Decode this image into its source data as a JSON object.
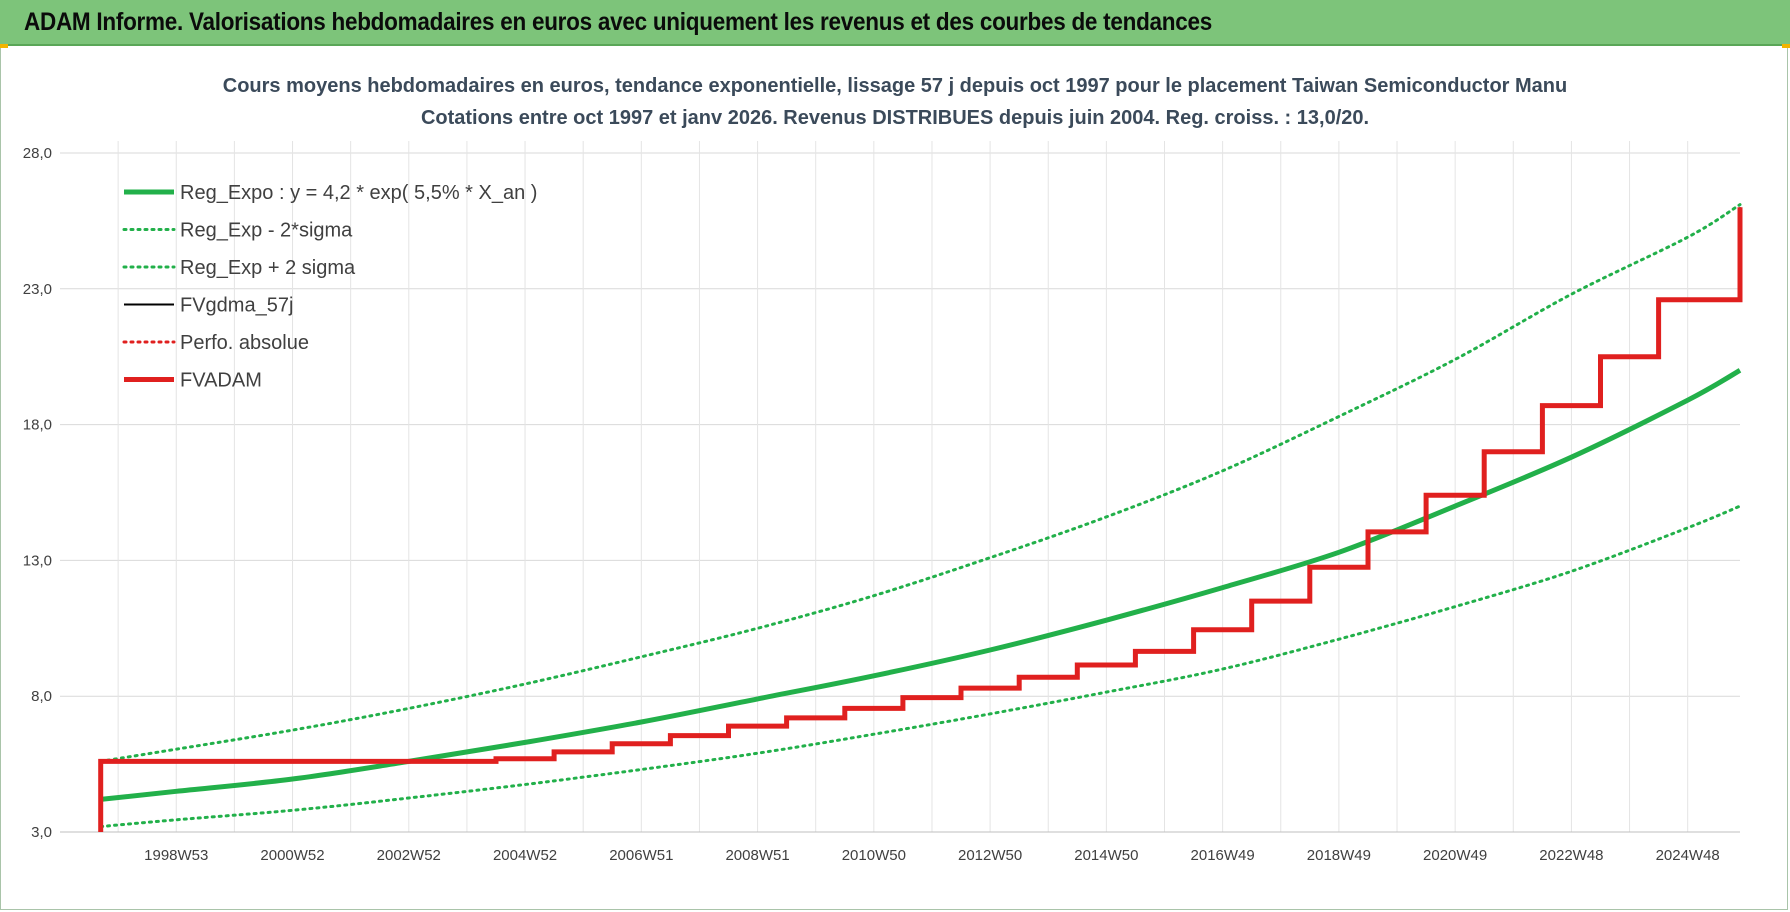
{
  "header": {
    "title": "ADAM Informe. Valorisations hebdomadaires en euros avec uniquement les revenus et des courbes de tendances",
    "background_color": "#7dc47a"
  },
  "chart_data": {
    "type": "line",
    "title": "Cours moyens hebdomadaires en euros, tendance exponentielle, lissage 57 j depuis oct 1997 pour le placement Taiwan Semiconductor Manu",
    "subtitle": "Cotations entre oct 1997 et janv 2026. Revenus DISTRIBUES depuis juin 2004. Reg. croiss. : 13,0/20.",
    "xlabel": "",
    "ylabel": "",
    "ylim": [
      3.0,
      28.0
    ],
    "xlim": [
      1997.0,
      2025.9
    ],
    "x_ticks": [
      {
        "label": "1998W53",
        "x": 1999.0
      },
      {
        "label": "2000W52",
        "x": 2001.0
      },
      {
        "label": "2002W52",
        "x": 2003.0
      },
      {
        "label": "2004W52",
        "x": 2005.0
      },
      {
        "label": "2006W51",
        "x": 2007.0
      },
      {
        "label": "2008W51",
        "x": 2009.0
      },
      {
        "label": "2010W50",
        "x": 2011.0
      },
      {
        "label": "2012W50",
        "x": 2013.0
      },
      {
        "label": "2014W50",
        "x": 2015.0
      },
      {
        "label": "2016W49",
        "x": 2017.0
      },
      {
        "label": "2018W49",
        "x": 2019.0
      },
      {
        "label": "2020W49",
        "x": 2021.0
      },
      {
        "label": "2022W48",
        "x": 2023.0
      },
      {
        "label": "2024W48",
        "x": 2025.0
      }
    ],
    "y_ticks": [
      "3,0",
      "8,0",
      "13,0",
      "18,0",
      "23,0",
      "28,0"
    ],
    "y_tick_values": [
      3,
      8,
      13,
      18,
      23,
      28
    ],
    "grid": true,
    "legend_position": "top-left",
    "series": [
      {
        "name": "Reg_Expo : y = 4,2 * exp( 5,5% *  X_an )",
        "color": "#22b04a",
        "style": "solid-thick",
        "x": [
          1997.7,
          1999,
          2001,
          2003,
          2005,
          2007,
          2009,
          2011,
          2013,
          2015,
          2017,
          2019,
          2021,
          2023,
          2025,
          2025.9
        ],
        "values": [
          4.2,
          4.5,
          4.95,
          5.6,
          6.3,
          7.05,
          7.9,
          8.75,
          9.7,
          10.8,
          12.0,
          13.3,
          15.0,
          16.8,
          18.9,
          20.0
        ]
      },
      {
        "name": "Reg_Exp - 2*sigma",
        "color": "#22b04a",
        "style": "dotted",
        "x": [
          1997.7,
          1999,
          2001,
          2003,
          2005,
          2007,
          2009,
          2011,
          2013,
          2015,
          2017,
          2019,
          2021,
          2023,
          2025,
          2025.9
        ],
        "values": [
          3.2,
          3.45,
          3.8,
          4.25,
          4.75,
          5.3,
          5.9,
          6.6,
          7.35,
          8.15,
          9.0,
          10.1,
          11.3,
          12.6,
          14.2,
          15.0
        ]
      },
      {
        "name": "Reg_Exp + 2 sigma",
        "color": "#22b04a",
        "style": "dotted",
        "x": [
          1997.7,
          1999,
          2001,
          2003,
          2005,
          2007,
          2009,
          2011,
          2013,
          2015,
          2017,
          2019,
          2021,
          2023,
          2025,
          2025.9
        ],
        "values": [
          5.6,
          6.05,
          6.75,
          7.55,
          8.45,
          9.45,
          10.5,
          11.7,
          13.1,
          14.6,
          16.3,
          18.3,
          20.4,
          22.8,
          24.9,
          26.1
        ]
      },
      {
        "name": "FVgdma_57j",
        "color": "#000000",
        "style": "solid",
        "x": [
          1997.7,
          2004.5,
          2005.5,
          2006.5,
          2007.5,
          2008.5,
          2009.5,
          2010.5,
          2011.5,
          2012.5,
          2013.5,
          2014.5,
          2015.5,
          2016.5,
          2017.5,
          2018.5,
          2019.5,
          2020.5,
          2021.5,
          2022.5,
          2023.5,
          2024.5,
          2025.9
        ],
        "values": [
          5.6,
          5.7,
          5.95,
          6.25,
          6.55,
          6.9,
          7.2,
          7.55,
          7.95,
          8.3,
          8.7,
          9.15,
          9.65,
          10.45,
          11.5,
          12.75,
          14.05,
          15.4,
          17.0,
          18.7,
          20.5,
          22.6,
          26.0
        ]
      },
      {
        "name": "Perfo. absolue",
        "color": "#e0201f",
        "style": "dotted",
        "x": [],
        "values": []
      },
      {
        "name": "FVADAM",
        "color": "#e0201f",
        "style": "solid-thick",
        "x": [
          1997.7,
          1997.7,
          2004.5,
          2005.5,
          2006.5,
          2007.5,
          2008.5,
          2009.5,
          2010.5,
          2011.5,
          2012.5,
          2013.5,
          2014.5,
          2015.5,
          2016.5,
          2017.5,
          2018.5,
          2019.5,
          2020.5,
          2021.5,
          2022.5,
          2023.5,
          2024.5,
          2025.9
        ],
        "values": [
          3.0,
          5.6,
          5.7,
          5.95,
          6.25,
          6.55,
          6.9,
          7.2,
          7.55,
          7.95,
          8.3,
          8.7,
          9.15,
          9.65,
          10.45,
          11.5,
          12.75,
          14.05,
          15.4,
          17.0,
          18.7,
          20.5,
          22.6,
          26.0
        ]
      }
    ]
  }
}
